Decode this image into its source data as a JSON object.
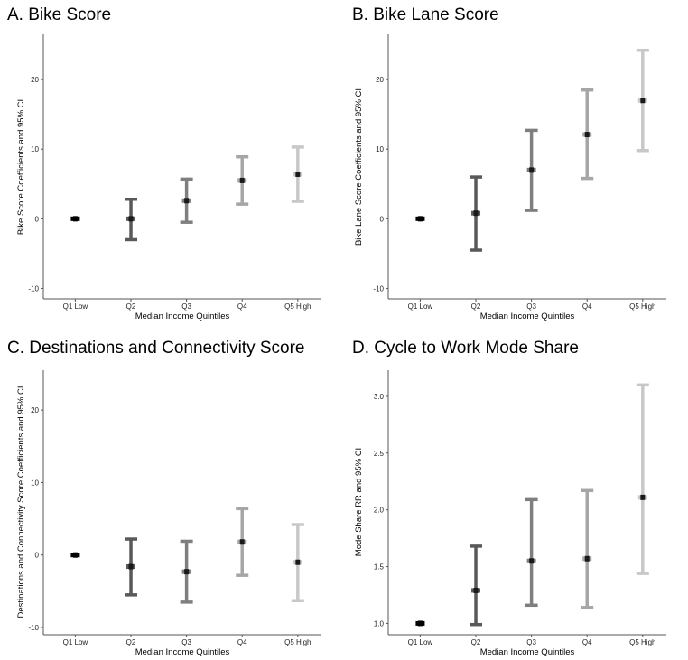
{
  "figure": {
    "palette": [
      "#000000",
      "#595959",
      "#7f7f7f",
      "#a6a6a6",
      "#c8c8c8"
    ],
    "median_color": "#1a1a1a"
  },
  "chart_data": [
    {
      "type": "errorbar",
      "title": "A. Bike Score",
      "xlabel": "Median Income Quintiles",
      "ylabel": "Bike Score Coefficients and 95% CI",
      "categories": [
        "Q1 Low",
        "Q2",
        "Q3",
        "Q4",
        "Q5 High"
      ],
      "estimate": [
        0,
        0,
        2.6,
        5.5,
        6.4
      ],
      "lower": [
        0,
        -3.0,
        -0.5,
        2.1,
        2.5
      ],
      "upper": [
        0,
        2.8,
        5.7,
        8.9,
        10.3
      ],
      "ylim": [
        -11.5,
        26.5
      ],
      "yticks": [
        -10,
        0,
        10,
        20
      ],
      "ytick_labels": [
        "-10",
        "0",
        "10",
        "20"
      ],
      "grid": false
    },
    {
      "type": "errorbar",
      "title": "B. Bike Lane Score",
      "xlabel": "Median Income Quintiles",
      "ylabel": "Bike Lane Score Coefficients and 95% CI",
      "categories": [
        "Q1 Low",
        "Q2",
        "Q3",
        "Q4",
        "Q5 High"
      ],
      "estimate": [
        0,
        0.8,
        7.0,
        12.1,
        17.0
      ],
      "lower": [
        0,
        -4.5,
        1.2,
        5.8,
        9.8
      ],
      "upper": [
        0,
        6.0,
        12.7,
        18.5,
        24.2
      ],
      "ylim": [
        -11.5,
        26.5
      ],
      "yticks": [
        -10,
        0,
        10,
        20
      ],
      "ytick_labels": [
        "-10",
        "0",
        "10",
        "20"
      ],
      "grid": false
    },
    {
      "type": "errorbar",
      "title": "C. Destinations and Connectivity Score",
      "xlabel": "Median Income Quintiles",
      "ylabel": "Destinations and Connectivity Score Coefficients and 95% CI",
      "categories": [
        "Q1 Low",
        "Q2",
        "Q3",
        "Q4",
        "Q5 High"
      ],
      "estimate": [
        0,
        -1.6,
        -2.3,
        1.8,
        -1.0
      ],
      "lower": [
        0,
        -5.5,
        -6.5,
        -2.8,
        -6.3
      ],
      "upper": [
        0,
        2.2,
        1.9,
        6.4,
        4.2
      ],
      "ylim": [
        -11,
        25.5
      ],
      "yticks": [
        -10,
        0,
        10,
        20
      ],
      "ytick_labels": [
        "-10",
        "0",
        "10",
        "20"
      ],
      "grid": false
    },
    {
      "type": "errorbar",
      "title": "D. Cycle to Work Mode Share",
      "xlabel": "Median Income Quintiles",
      "ylabel": "Mode Share RR and 95% CI",
      "categories": [
        "Q1 Low",
        "Q2",
        "Q3",
        "Q4",
        "Q5 High"
      ],
      "estimate": [
        1.0,
        1.29,
        1.55,
        1.57,
        2.11
      ],
      "lower": [
        1.0,
        0.99,
        1.16,
        1.14,
        1.44
      ],
      "upper": [
        1.0,
        1.68,
        2.09,
        2.17,
        3.1
      ],
      "ylim": [
        0.9,
        3.23
      ],
      "yticks": [
        1.0,
        1.5,
        2.0,
        2.5,
        3.0
      ],
      "ytick_labels": [
        "1.0",
        "1.5",
        "2.0",
        "2.5",
        "3.0"
      ],
      "grid": false
    }
  ]
}
